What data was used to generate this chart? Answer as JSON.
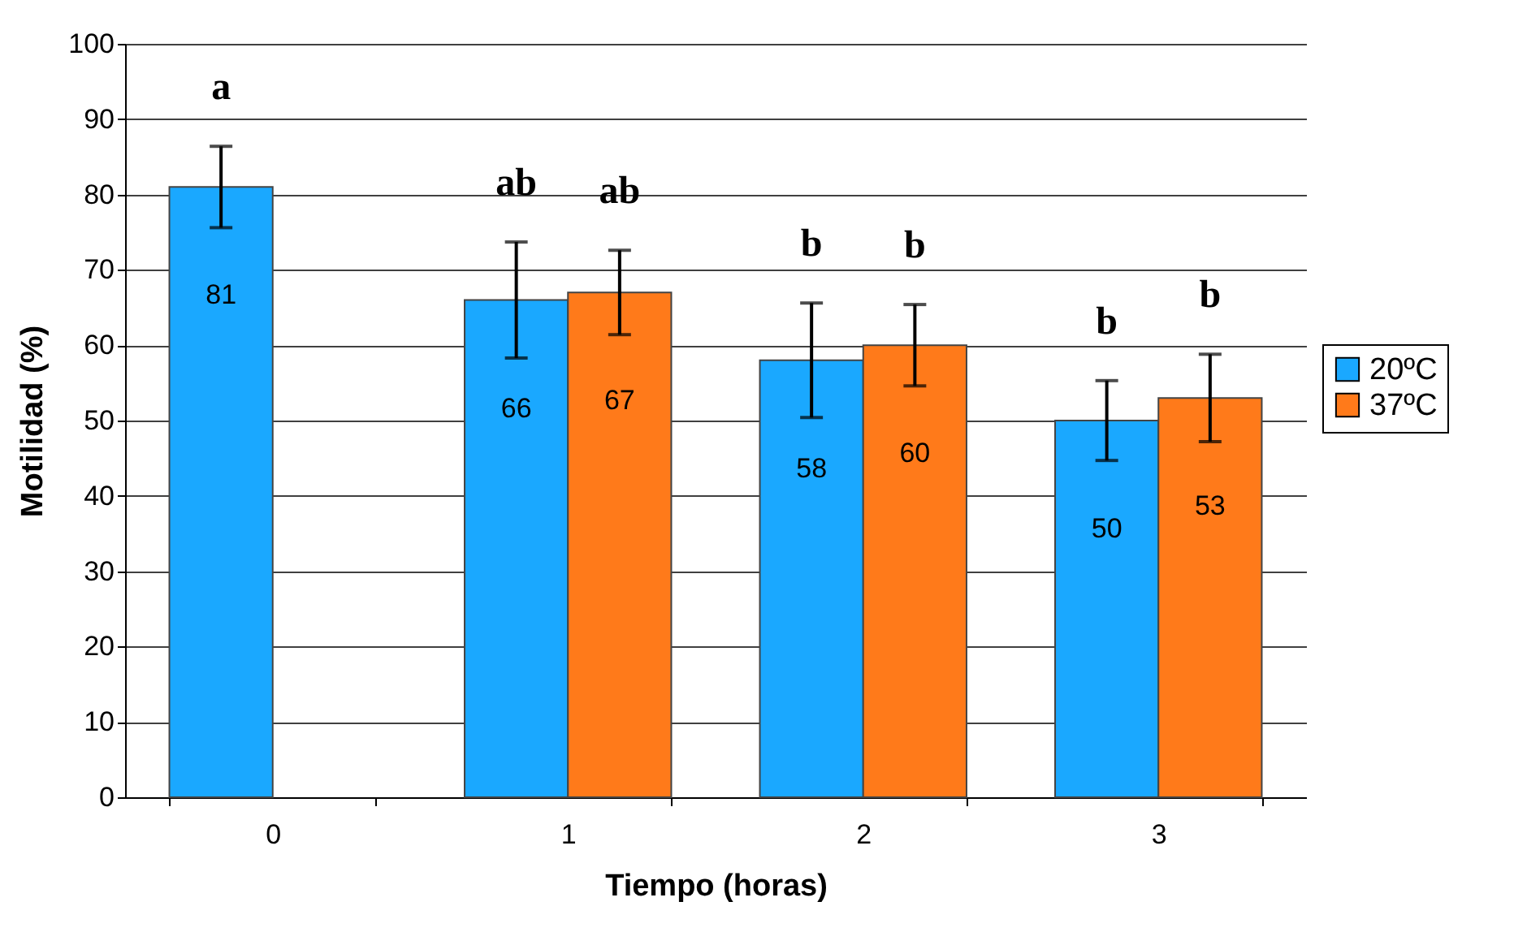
{
  "chart_data": {
    "type": "bar",
    "xlabel": "Tiempo (horas)",
    "ylabel": "Motilidad (%)",
    "categories": [
      "0",
      "1",
      "2",
      "3"
    ],
    "series": [
      {
        "name": "20ºC",
        "color": "#1aa8ff",
        "values": [
          81,
          66,
          58,
          50
        ],
        "errors": [
          5.4,
          7.7,
          7.6,
          5.3
        ]
      },
      {
        "name": "37ºC",
        "color": "#ff7a1a",
        "values": [
          null,
          67,
          60,
          53
        ],
        "errors": [
          null,
          5.6,
          5.4,
          5.8
        ]
      }
    ],
    "ylim": [
      0,
      100
    ],
    "yticks": [
      0,
      10,
      20,
      30,
      40,
      50,
      60,
      70,
      80,
      90,
      100
    ],
    "grid": "y",
    "legend": "right",
    "data_labels": true,
    "annotations": [
      "a",
      "ab",
      "ab",
      "b",
      "b",
      "b",
      "b"
    ]
  }
}
